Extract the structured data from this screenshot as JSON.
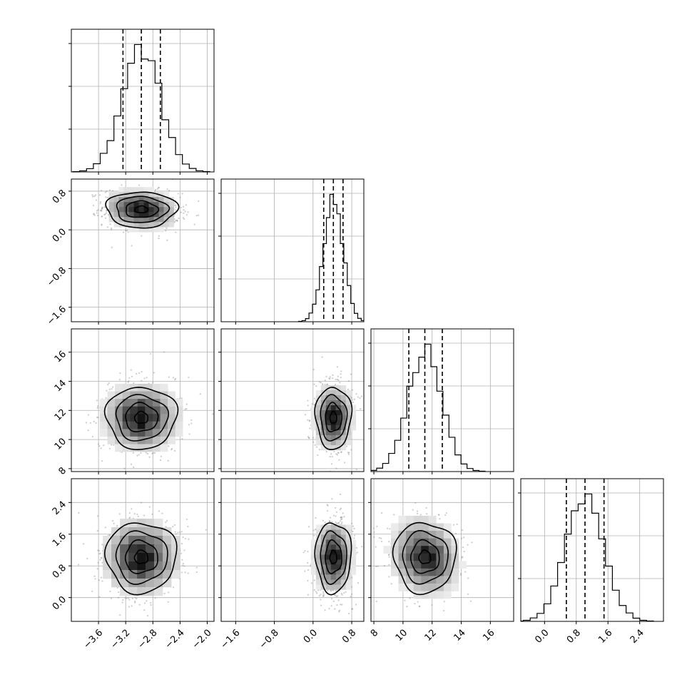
{
  "chart_data": {
    "type": "corner",
    "n_params": 4,
    "params": [
      {
        "range": [
          -4.0,
          -1.9
        ],
        "ticks": [
          -3.6,
          -3.2,
          -2.8,
          -2.4,
          -2.0
        ],
        "tick_labels": [
          "−3.6",
          "−3.2",
          "−2.8",
          "−2.4",
          "−2.0"
        ],
        "quantiles": [
          -3.24,
          -2.97,
          -2.69
        ],
        "mean": -2.97,
        "sd": 0.28
      },
      {
        "range": [
          -1.9,
          1.05
        ],
        "ticks": [
          -1.6,
          -0.8,
          0.0,
          0.8
        ],
        "tick_labels": [
          "−1.6",
          "−0.8",
          "0.0",
          "0.8"
        ],
        "quantiles": [
          0.22,
          0.42,
          0.62
        ],
        "mean": 0.42,
        "sd": 0.2
      },
      {
        "range": [
          7.8,
          17.6
        ],
        "ticks": [
          8,
          10,
          12,
          14,
          16
        ],
        "tick_labels": [
          "8",
          "10",
          "12",
          "14",
          "16"
        ],
        "quantiles": [
          10.4,
          11.5,
          12.7
        ],
        "mean": 11.5,
        "sd": 1.15
      },
      {
        "range": [
          -0.6,
          3.0
        ],
        "ticks": [
          0.0,
          0.8,
          1.6,
          2.4
        ],
        "tick_labels": [
          "0.0",
          "0.8",
          "1.6",
          "2.4"
        ],
        "quantiles": [
          0.55,
          1.02,
          1.5
        ],
        "mean": 1.02,
        "sd": 0.48
      }
    ],
    "hist_y_ticks": 3,
    "title": "",
    "grid": true,
    "colors": {
      "ink": "#000000",
      "grid": "#b0b0b0",
      "scatter": "#8c8c8c"
    }
  }
}
